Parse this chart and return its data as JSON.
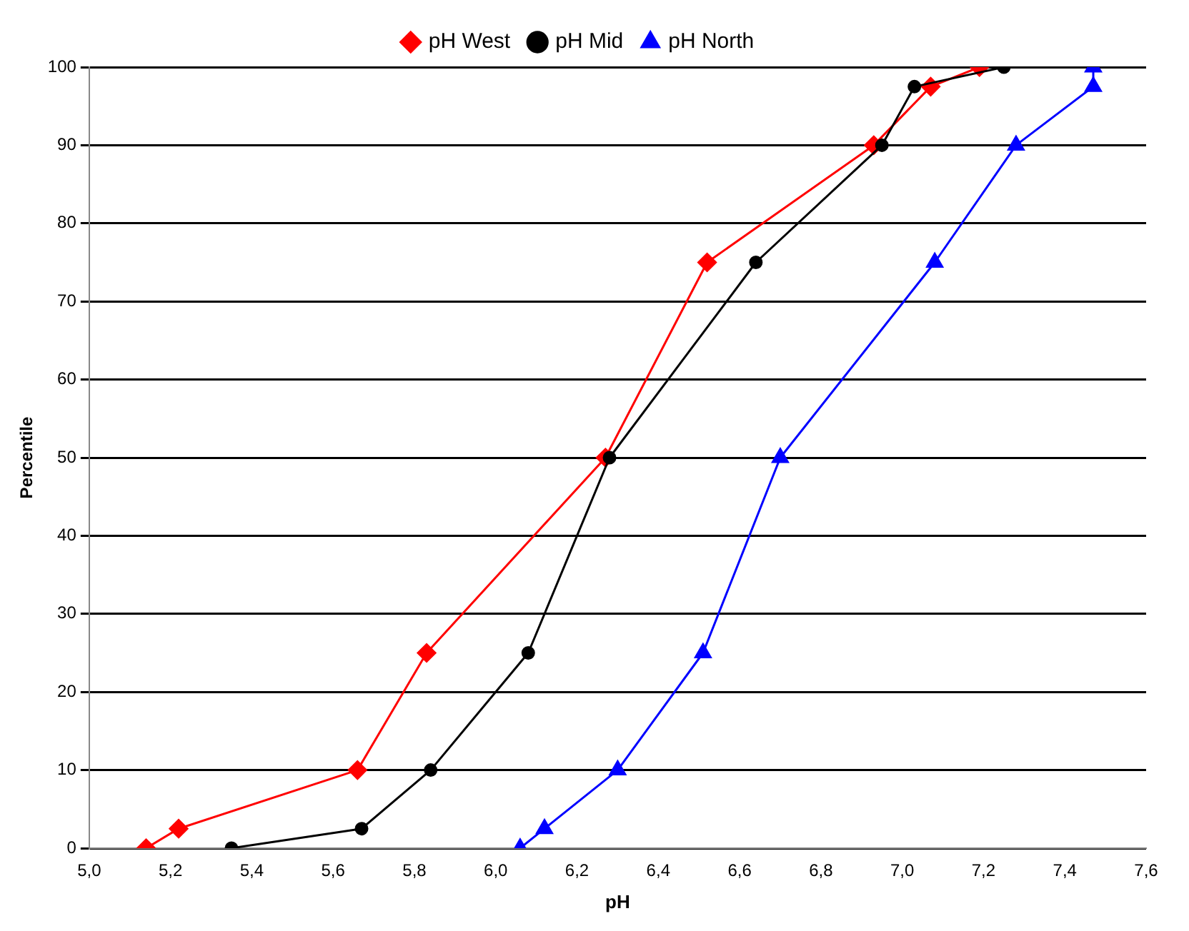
{
  "chart_data": {
    "type": "line",
    "xlabel": "pH",
    "ylabel": "Percentile",
    "legend": "top",
    "grid": "y",
    "xlim": [
      5.0,
      7.6
    ],
    "xticks": [
      {
        "value": 5.0,
        "label": "5,0"
      },
      {
        "value": 5.2,
        "label": "5,2"
      },
      {
        "value": 5.4,
        "label": "5,4"
      },
      {
        "value": 5.6,
        "label": "5,6"
      },
      {
        "value": 5.8,
        "label": "5,8"
      },
      {
        "value": 6.0,
        "label": "6,0"
      },
      {
        "value": 6.2,
        "label": "6,2"
      },
      {
        "value": 6.4,
        "label": "6,4"
      },
      {
        "value": 6.6,
        "label": "6,6"
      },
      {
        "value": 6.8,
        "label": "6,8"
      },
      {
        "value": 7.0,
        "label": "7,0"
      },
      {
        "value": 7.2,
        "label": "7,2"
      },
      {
        "value": 7.4,
        "label": "7,4"
      },
      {
        "value": 7.6,
        "label": "7,6"
      }
    ],
    "ylim": [
      0,
      100
    ],
    "yticks": [
      0,
      10,
      20,
      30,
      40,
      50,
      60,
      70,
      80,
      90,
      100
    ],
    "series": [
      {
        "name": "pH West",
        "color": "#ff0000",
        "marker": "diamond",
        "x": [
          5.14,
          5.22,
          5.66,
          5.83,
          6.27,
          6.52,
          6.93,
          7.07,
          7.19
        ],
        "values": [
          0,
          2.5,
          10,
          25,
          50,
          75,
          90,
          97.5,
          100
        ]
      },
      {
        "name": "pH Mid",
        "color": "#000000",
        "marker": "circle",
        "x": [
          5.35,
          5.67,
          5.84,
          6.08,
          6.28,
          6.64,
          6.95,
          7.03,
          7.25
        ],
        "values": [
          0,
          2.5,
          10,
          25,
          50,
          75,
          90,
          97.5,
          100
        ]
      },
      {
        "name": "pH North",
        "color": "#0000ff",
        "marker": "triangle",
        "x": [
          6.06,
          6.12,
          6.3,
          6.51,
          6.7,
          7.08,
          7.28,
          7.47,
          7.47
        ],
        "values": [
          0,
          2.5,
          10,
          25,
          50,
          75,
          90,
          97.5,
          100
        ]
      }
    ]
  }
}
